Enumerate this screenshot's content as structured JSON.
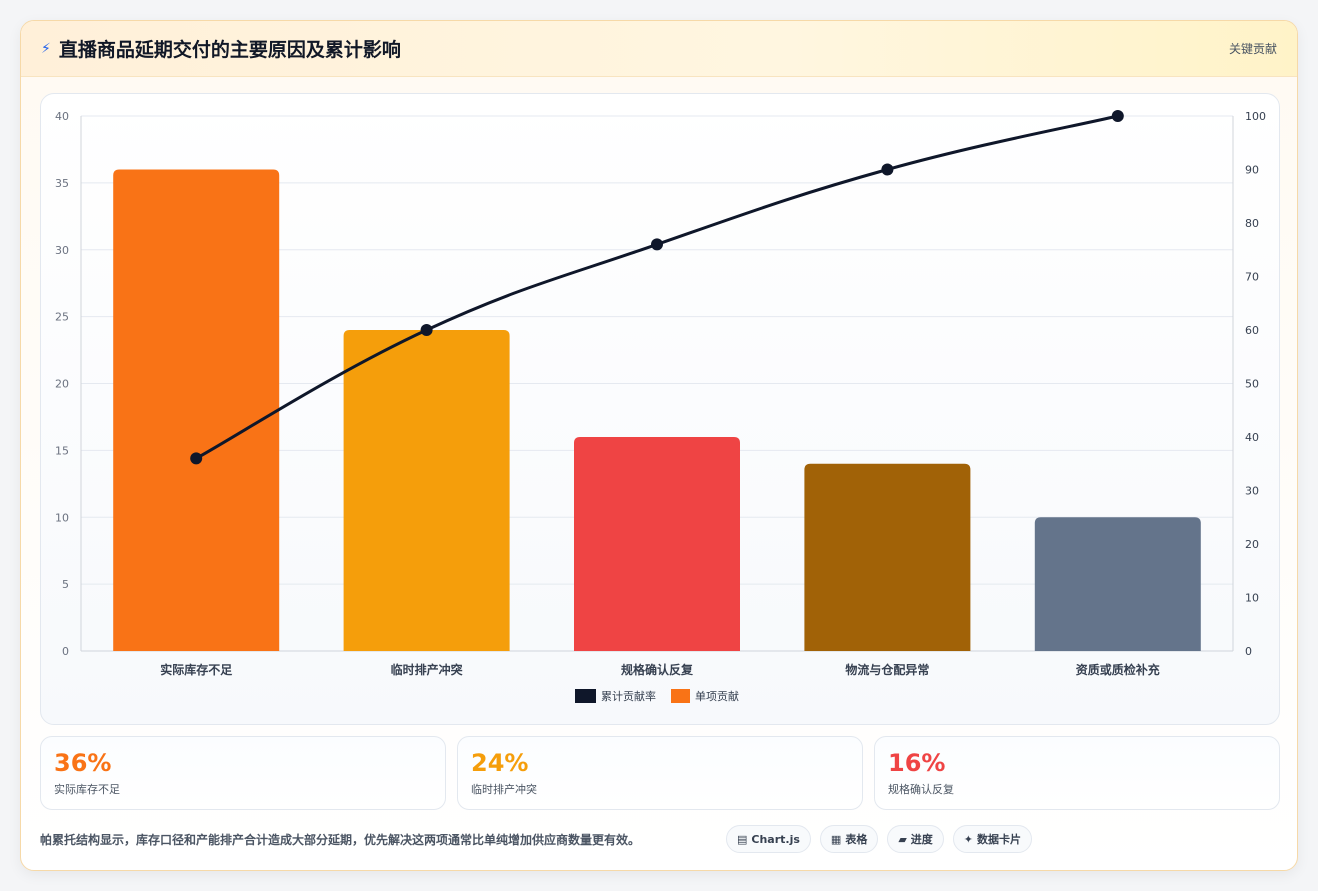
{
  "header": {
    "icon": "lightning-icon",
    "title": "直播商品延期交付的主要原因及累计影响",
    "right_label": "关键贡献"
  },
  "colors": {
    "line": "#0f172a",
    "bars": [
      "#f97316",
      "#f59e0b",
      "#ef4444",
      "#a16207",
      "#64748b"
    ]
  },
  "chart_data": {
    "type": "bar",
    "categories": [
      "实际库存不足",
      "临时排产冲突",
      "规格确认反复",
      "物流与仓配异常",
      "资质或质检补充"
    ],
    "series": [
      {
        "name": "单项贡献",
        "type": "bar",
        "values": [
          36,
          24,
          16,
          14,
          10
        ],
        "axis": "left"
      },
      {
        "name": "累计贡献率",
        "type": "line",
        "values": [
          36,
          60,
          76,
          90,
          100
        ],
        "axis": "right"
      }
    ],
    "ylim": [
      0,
      40
    ],
    "yticks": [
      0,
      5,
      10,
      15,
      20,
      25,
      30,
      35,
      40
    ],
    "y2lim": [
      0,
      100
    ],
    "y2ticks": [
      0,
      10,
      20,
      30,
      40,
      50,
      60,
      70,
      80,
      90,
      100
    ],
    "legend": [
      "累计贡献率",
      "单项贡献"
    ],
    "legend_position": "bottom",
    "grid": true
  },
  "stats": [
    {
      "value": "36%",
      "label": "实际库存不足",
      "color": "#f97316"
    },
    {
      "value": "24%",
      "label": "临时排产冲突",
      "color": "#f59e0b"
    },
    {
      "value": "16%",
      "label": "规格确认反复",
      "color": "#ef4444"
    }
  ],
  "footer": {
    "text": "帕累托结构显示，库存口径和产能排产合计造成大部分延期，优先解决这两项通常比单纯增加供应商数量更有效。",
    "chips": [
      {
        "icon": "▤",
        "label": "Chart.js"
      },
      {
        "icon": "▦",
        "label": "表格"
      },
      {
        "icon": "▰",
        "label": "进度"
      },
      {
        "icon": "✦",
        "label": "数据卡片"
      }
    ]
  }
}
